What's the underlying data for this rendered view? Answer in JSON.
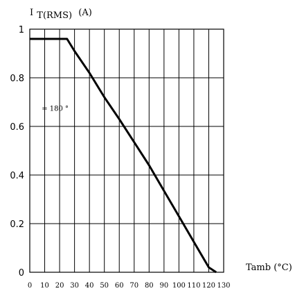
{
  "chart_data": {
    "type": "line",
    "title": "",
    "ylabel": {
      "prefix": "I",
      "subscript": "T(RMS)",
      "unit": "(A)"
    },
    "xlabel": "Tamb (°C)",
    "xlim": [
      0,
      130
    ],
    "ylim": [
      0,
      1
    ],
    "x_ticks": [
      0,
      10,
      20,
      30,
      40,
      50,
      60,
      70,
      80,
      90,
      100,
      110,
      120,
      130
    ],
    "y_ticks": [
      0,
      0.2,
      0.4,
      0.6,
      0.8,
      1
    ],
    "y_tick_labels": [
      "0",
      "0.2",
      "0.4",
      "0.6",
      "0.8",
      "1"
    ],
    "grid": true,
    "series": [
      {
        "x": [
          0,
          25,
          30,
          40,
          50,
          60,
          70,
          80,
          90,
          100,
          110,
          120,
          125
        ],
        "y": [
          0.96,
          0.96,
          0.91,
          0.82,
          0.72,
          0.63,
          0.535,
          0.44,
          0.335,
          0.23,
          0.125,
          0.02,
          0.0
        ]
      }
    ],
    "annotations": [
      {
        "text": "= 180 °",
        "x": 17,
        "y": 0.665
      }
    ]
  }
}
